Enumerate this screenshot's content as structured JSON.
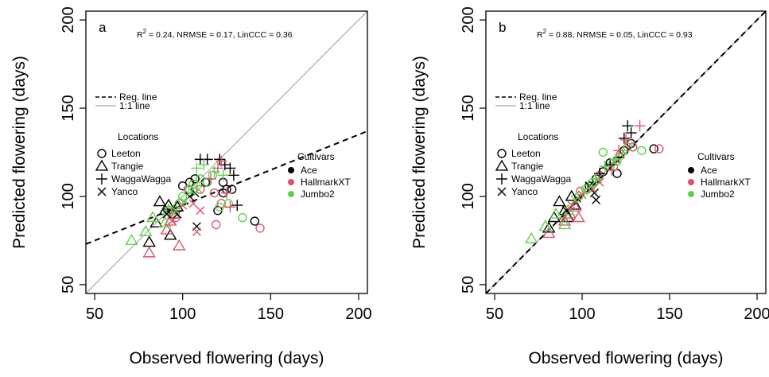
{
  "figure": {
    "xlabel": "Observed flowering (days)",
    "ylabel": "Predicted flowering (days)"
  },
  "chart_data": [
    {
      "type": "scatter",
      "panel": "a",
      "stats": [
        "R",
        "2",
        " = 0.24,  NRMSE = 0.17,  LinCCC = 0.36"
      ],
      "xlabel": "Observed flowering (days)",
      "ylabel": "Predicted flowering (days)",
      "xlim": [
        45,
        205
      ],
      "ylim": [
        45,
        205
      ],
      "xticks": [
        "50",
        "100",
        "150",
        "200"
      ],
      "yticks": [
        "50",
        "100",
        "150",
        "200"
      ],
      "grid": false,
      "lines_legend": [
        {
          "label": "Reg. line",
          "style": "dashed",
          "color": "#000000"
        },
        {
          "label": "1:1 line",
          "style": "solid",
          "color": "#aaaaaa"
        }
      ],
      "regression": {
        "slope": 0.4,
        "intercept": 55
      },
      "locations_title": "Locations",
      "locations": [
        {
          "name": "Leeton",
          "marker": "circle"
        },
        {
          "name": "Trangie",
          "marker": "triangle"
        },
        {
          "name": "WaggaWagga",
          "marker": "plus"
        },
        {
          "name": "Yanco",
          "marker": "cross"
        }
      ],
      "cultivars_title": "Cultivars",
      "cultivars": [
        {
          "name": "Ace",
          "color": "#000000"
        },
        {
          "name": "HallmarkXT",
          "color": "#df536b"
        },
        {
          "name": "Jumbo2",
          "color": "#61d04f"
        }
      ],
      "points": [
        {
          "x": 100,
          "y": 106,
          "loc": "circle",
          "cv": "Ace"
        },
        {
          "x": 104,
          "y": 108,
          "loc": "circle",
          "cv": "Ace"
        },
        {
          "x": 107,
          "y": 110,
          "loc": "circle",
          "cv": "Ace"
        },
        {
          "x": 113,
          "y": 108,
          "loc": "circle",
          "cv": "Ace"
        },
        {
          "x": 120,
          "y": 92,
          "loc": "circle",
          "cv": "Ace"
        },
        {
          "x": 123,
          "y": 102,
          "loc": "circle",
          "cv": "Ace"
        },
        {
          "x": 125,
          "y": 104,
          "loc": "circle",
          "cv": "Ace"
        },
        {
          "x": 128,
          "y": 104,
          "loc": "circle",
          "cv": "Ace"
        },
        {
          "x": 141,
          "y": 86,
          "loc": "circle",
          "cv": "Ace"
        },
        {
          "x": 123,
          "y": 108,
          "loc": "circle",
          "cv": "Ace"
        },
        {
          "x": 103,
          "y": 104,
          "loc": "circle",
          "cv": "HallmarkXT"
        },
        {
          "x": 110,
          "y": 104,
          "loc": "circle",
          "cv": "HallmarkXT"
        },
        {
          "x": 118,
          "y": 102,
          "loc": "circle",
          "cv": "HallmarkXT"
        },
        {
          "x": 119,
          "y": 84,
          "loc": "circle",
          "cv": "HallmarkXT"
        },
        {
          "x": 122,
          "y": 96,
          "loc": "circle",
          "cv": "HallmarkXT"
        },
        {
          "x": 144,
          "y": 82,
          "loc": "circle",
          "cv": "HallmarkXT"
        },
        {
          "x": 96,
          "y": 88,
          "loc": "circle",
          "cv": "HallmarkXT"
        },
        {
          "x": 100,
          "y": 100,
          "loc": "circle",
          "cv": "Jumbo2"
        },
        {
          "x": 104,
          "y": 104,
          "loc": "circle",
          "cv": "Jumbo2"
        },
        {
          "x": 106,
          "y": 107,
          "loc": "circle",
          "cv": "Jumbo2"
        },
        {
          "x": 110,
          "y": 110,
          "loc": "circle",
          "cv": "Jumbo2"
        },
        {
          "x": 114,
          "y": 108,
          "loc": "circle",
          "cv": "Jumbo2"
        },
        {
          "x": 117,
          "y": 112,
          "loc": "circle",
          "cv": "Jumbo2"
        },
        {
          "x": 121,
          "y": 94,
          "loc": "circle",
          "cv": "Jumbo2"
        },
        {
          "x": 126,
          "y": 96,
          "loc": "circle",
          "cv": "Jumbo2"
        },
        {
          "x": 134,
          "y": 88,
          "loc": "circle",
          "cv": "Jumbo2"
        },
        {
          "x": 93,
          "y": 92,
          "loc": "circle",
          "cv": "Jumbo2"
        },
        {
          "x": 98,
          "y": 96,
          "loc": "circle",
          "cv": "Jumbo2"
        },
        {
          "x": 81,
          "y": 74,
          "loc": "triangle",
          "cv": "Ace"
        },
        {
          "x": 85,
          "y": 85,
          "loc": "triangle",
          "cv": "Ace"
        },
        {
          "x": 87,
          "y": 97,
          "loc": "triangle",
          "cv": "Ace"
        },
        {
          "x": 90,
          "y": 92,
          "loc": "triangle",
          "cv": "Ace"
        },
        {
          "x": 92,
          "y": 95,
          "loc": "triangle",
          "cv": "Ace"
        },
        {
          "x": 93,
          "y": 78,
          "loc": "triangle",
          "cv": "Ace"
        },
        {
          "x": 95,
          "y": 90,
          "loc": "triangle",
          "cv": "Ace"
        },
        {
          "x": 97,
          "y": 94,
          "loc": "triangle",
          "cv": "Ace"
        },
        {
          "x": 81,
          "y": 68,
          "loc": "triangle",
          "cv": "HallmarkXT"
        },
        {
          "x": 91,
          "y": 81,
          "loc": "triangle",
          "cv": "HallmarkXT"
        },
        {
          "x": 93,
          "y": 86,
          "loc": "triangle",
          "cv": "HallmarkXT"
        },
        {
          "x": 95,
          "y": 90,
          "loc": "triangle",
          "cv": "HallmarkXT"
        },
        {
          "x": 98,
          "y": 72,
          "loc": "triangle",
          "cv": "HallmarkXT"
        },
        {
          "x": 71,
          "y": 75,
          "loc": "triangle",
          "cv": "Jumbo2"
        },
        {
          "x": 79,
          "y": 80,
          "loc": "triangle",
          "cv": "Jumbo2"
        },
        {
          "x": 83,
          "y": 88,
          "loc": "triangle",
          "cv": "Jumbo2"
        },
        {
          "x": 90,
          "y": 85,
          "loc": "triangle",
          "cv": "Jumbo2"
        },
        {
          "x": 92,
          "y": 92,
          "loc": "triangle",
          "cv": "Jumbo2"
        },
        {
          "x": 110,
          "y": 121,
          "loc": "plus",
          "cv": "Ace"
        },
        {
          "x": 114,
          "y": 121,
          "loc": "plus",
          "cv": "Ace"
        },
        {
          "x": 121,
          "y": 121,
          "loc": "plus",
          "cv": "Ace"
        },
        {
          "x": 124,
          "y": 118,
          "loc": "plus",
          "cv": "Ace"
        },
        {
          "x": 127,
          "y": 116,
          "loc": "plus",
          "cv": "Ace"
        },
        {
          "x": 129,
          "y": 112,
          "loc": "plus",
          "cv": "Ace"
        },
        {
          "x": 131,
          "y": 95,
          "loc": "plus",
          "cv": "Ace"
        },
        {
          "x": 116,
          "y": 110,
          "loc": "plus",
          "cv": "HallmarkXT"
        },
        {
          "x": 120,
          "y": 116,
          "loc": "plus",
          "cv": "HallmarkXT"
        },
        {
          "x": 122,
          "y": 120,
          "loc": "plus",
          "cv": "HallmarkXT"
        },
        {
          "x": 125,
          "y": 102,
          "loc": "plus",
          "cv": "HallmarkXT"
        },
        {
          "x": 127,
          "y": 94,
          "loc": "plus",
          "cv": "HallmarkXT"
        },
        {
          "x": 108,
          "y": 116,
          "loc": "plus",
          "cv": "Jumbo2"
        },
        {
          "x": 112,
          "y": 118,
          "loc": "plus",
          "cv": "Jumbo2"
        },
        {
          "x": 118,
          "y": 114,
          "loc": "plus",
          "cv": "Jumbo2"
        },
        {
          "x": 123,
          "y": 112,
          "loc": "plus",
          "cv": "Jumbo2"
        },
        {
          "x": 91,
          "y": 90,
          "loc": "cross",
          "cv": "Ace"
        },
        {
          "x": 97,
          "y": 90,
          "loc": "cross",
          "cv": "Ace"
        },
        {
          "x": 104,
          "y": 100,
          "loc": "cross",
          "cv": "Ace"
        },
        {
          "x": 107,
          "y": 102,
          "loc": "cross",
          "cv": "Ace"
        },
        {
          "x": 108,
          "y": 83,
          "loc": "cross",
          "cv": "Ace"
        },
        {
          "x": 94,
          "y": 86,
          "loc": "cross",
          "cv": "HallmarkXT"
        },
        {
          "x": 100,
          "y": 95,
          "loc": "cross",
          "cv": "HallmarkXT"
        },
        {
          "x": 106,
          "y": 96,
          "loc": "cross",
          "cv": "HallmarkXT"
        },
        {
          "x": 108,
          "y": 80,
          "loc": "cross",
          "cv": "HallmarkXT"
        },
        {
          "x": 110,
          "y": 92,
          "loc": "cross",
          "cv": "HallmarkXT"
        },
        {
          "x": 96,
          "y": 92,
          "loc": "cross",
          "cv": "Jumbo2"
        },
        {
          "x": 101,
          "y": 97,
          "loc": "cross",
          "cv": "Jumbo2"
        },
        {
          "x": 105,
          "y": 103,
          "loc": "cross",
          "cv": "Jumbo2"
        },
        {
          "x": 109,
          "y": 104,
          "loc": "cross",
          "cv": "Jumbo2"
        }
      ]
    },
    {
      "type": "scatter",
      "panel": "b",
      "stats": [
        "R",
        "2",
        " = 0.88,  NRMSE = 0.05,  LinCCC = 0.93"
      ],
      "xlabel": "Observed flowering (days)",
      "ylabel": "Predicted flowering (days)",
      "xlim": [
        45,
        205
      ],
      "ylim": [
        45,
        205
      ],
      "xticks": [
        "50",
        "100",
        "150",
        "200"
      ],
      "yticks": [
        "50",
        "100",
        "150",
        "200"
      ],
      "grid": false,
      "lines_legend": [
        {
          "label": "Reg. line",
          "style": "dashed",
          "color": "#000000"
        },
        {
          "label": "1:1 line",
          "style": "solid",
          "color": "#aaaaaa"
        }
      ],
      "regression": {
        "slope": 1.0,
        "intercept": 0
      },
      "locations_title": "Locations",
      "locations": [
        {
          "name": "Leeton",
          "marker": "circle"
        },
        {
          "name": "Trangie",
          "marker": "triangle"
        },
        {
          "name": "WaggaWagga",
          "marker": "plus"
        },
        {
          "name": "Yanco",
          "marker": "cross"
        }
      ],
      "cultivars_title": "Cultivars",
      "cultivars": [
        {
          "name": "Ace",
          "color": "#000000"
        },
        {
          "name": "HallmarkXT",
          "color": "#df536b"
        },
        {
          "name": "Jumbo2",
          "color": "#61d04f"
        }
      ],
      "points": [
        {
          "x": 104,
          "y": 106,
          "loc": "circle",
          "cv": "Ace"
        },
        {
          "x": 108,
          "y": 110,
          "loc": "circle",
          "cv": "Ace"
        },
        {
          "x": 112,
          "y": 114,
          "loc": "circle",
          "cv": "Ace"
        },
        {
          "x": 116,
          "y": 119,
          "loc": "circle",
          "cv": "Ace"
        },
        {
          "x": 120,
          "y": 113,
          "loc": "circle",
          "cv": "Ace"
        },
        {
          "x": 124,
          "y": 126,
          "loc": "circle",
          "cv": "Ace"
        },
        {
          "x": 128,
          "y": 130,
          "loc": "circle",
          "cv": "Ace"
        },
        {
          "x": 141,
          "y": 127,
          "loc": "circle",
          "cv": "Ace"
        },
        {
          "x": 99,
          "y": 103,
          "loc": "circle",
          "cv": "HallmarkXT"
        },
        {
          "x": 110,
          "y": 112,
          "loc": "circle",
          "cv": "HallmarkXT"
        },
        {
          "x": 118,
          "y": 117,
          "loc": "circle",
          "cv": "HallmarkXT"
        },
        {
          "x": 122,
          "y": 124,
          "loc": "circle",
          "cv": "HallmarkXT"
        },
        {
          "x": 129,
          "y": 128,
          "loc": "circle",
          "cv": "HallmarkXT"
        },
        {
          "x": 144,
          "y": 127,
          "loc": "circle",
          "cv": "HallmarkXT"
        },
        {
          "x": 102,
          "y": 104,
          "loc": "circle",
          "cv": "Jumbo2"
        },
        {
          "x": 106,
          "y": 108,
          "loc": "circle",
          "cv": "Jumbo2"
        },
        {
          "x": 112,
          "y": 125,
          "loc": "circle",
          "cv": "Jumbo2"
        },
        {
          "x": 116,
          "y": 117,
          "loc": "circle",
          "cv": "Jumbo2"
        },
        {
          "x": 120,
          "y": 120,
          "loc": "circle",
          "cv": "Jumbo2"
        },
        {
          "x": 126,
          "y": 128,
          "loc": "circle",
          "cv": "Jumbo2"
        },
        {
          "x": 134,
          "y": 126,
          "loc": "circle",
          "cv": "Jumbo2"
        },
        {
          "x": 98,
          "y": 100,
          "loc": "circle",
          "cv": "Jumbo2"
        },
        {
          "x": 81,
          "y": 82,
          "loc": "triangle",
          "cv": "Ace"
        },
        {
          "x": 84,
          "y": 88,
          "loc": "triangle",
          "cv": "Ace"
        },
        {
          "x": 87,
          "y": 97,
          "loc": "triangle",
          "cv": "Ace"
        },
        {
          "x": 90,
          "y": 92,
          "loc": "triangle",
          "cv": "Ace"
        },
        {
          "x": 92,
          "y": 88,
          "loc": "triangle",
          "cv": "Ace"
        },
        {
          "x": 94,
          "y": 100,
          "loc": "triangle",
          "cv": "Ace"
        },
        {
          "x": 96,
          "y": 95,
          "loc": "triangle",
          "cv": "Ace"
        },
        {
          "x": 81,
          "y": 79,
          "loc": "triangle",
          "cv": "HallmarkXT"
        },
        {
          "x": 90,
          "y": 86,
          "loc": "triangle",
          "cv": "HallmarkXT"
        },
        {
          "x": 93,
          "y": 90,
          "loc": "triangle",
          "cv": "HallmarkXT"
        },
        {
          "x": 96,
          "y": 94,
          "loc": "triangle",
          "cv": "HallmarkXT"
        },
        {
          "x": 98,
          "y": 88,
          "loc": "triangle",
          "cv": "HallmarkXT"
        },
        {
          "x": 71,
          "y": 76,
          "loc": "triangle",
          "cv": "Jumbo2"
        },
        {
          "x": 79,
          "y": 83,
          "loc": "triangle",
          "cv": "Jumbo2"
        },
        {
          "x": 85,
          "y": 90,
          "loc": "triangle",
          "cv": "Jumbo2"
        },
        {
          "x": 90,
          "y": 84,
          "loc": "triangle",
          "cv": "Jumbo2"
        },
        {
          "x": 92,
          "y": 92,
          "loc": "triangle",
          "cv": "Jumbo2"
        },
        {
          "x": 110,
          "y": 113,
          "loc": "plus",
          "cv": "Ace"
        },
        {
          "x": 116,
          "y": 118,
          "loc": "plus",
          "cv": "Ace"
        },
        {
          "x": 121,
          "y": 122,
          "loc": "plus",
          "cv": "Ace"
        },
        {
          "x": 124,
          "y": 133,
          "loc": "plus",
          "cv": "Ace"
        },
        {
          "x": 126,
          "y": 140,
          "loc": "plus",
          "cv": "Ace"
        },
        {
          "x": 128,
          "y": 136,
          "loc": "plus",
          "cv": "Ace"
        },
        {
          "x": 117,
          "y": 115,
          "loc": "plus",
          "cv": "HallmarkXT"
        },
        {
          "x": 121,
          "y": 126,
          "loc": "plus",
          "cv": "HallmarkXT"
        },
        {
          "x": 125,
          "y": 132,
          "loc": "plus",
          "cv": "HallmarkXT"
        },
        {
          "x": 133,
          "y": 140,
          "loc": "plus",
          "cv": "HallmarkXT"
        },
        {
          "x": 108,
          "y": 110,
          "loc": "plus",
          "cv": "Jumbo2"
        },
        {
          "x": 113,
          "y": 117,
          "loc": "plus",
          "cv": "Jumbo2"
        },
        {
          "x": 119,
          "y": 121,
          "loc": "plus",
          "cv": "Jumbo2"
        },
        {
          "x": 123,
          "y": 124,
          "loc": "plus",
          "cv": "Jumbo2"
        },
        {
          "x": 91,
          "y": 92,
          "loc": "cross",
          "cv": "Ace"
        },
        {
          "x": 97,
          "y": 99,
          "loc": "cross",
          "cv": "Ace"
        },
        {
          "x": 104,
          "y": 106,
          "loc": "cross",
          "cv": "Ace"
        },
        {
          "x": 107,
          "y": 102,
          "loc": "cross",
          "cv": "Ace"
        },
        {
          "x": 108,
          "y": 98,
          "loc": "cross",
          "cv": "Ace"
        },
        {
          "x": 94,
          "y": 95,
          "loc": "cross",
          "cv": "HallmarkXT"
        },
        {
          "x": 100,
          "y": 101,
          "loc": "cross",
          "cv": "HallmarkXT"
        },
        {
          "x": 106,
          "y": 104,
          "loc": "cross",
          "cv": "HallmarkXT"
        },
        {
          "x": 110,
          "y": 108,
          "loc": "cross",
          "cv": "HallmarkXT"
        },
        {
          "x": 96,
          "y": 98,
          "loc": "cross",
          "cv": "Jumbo2"
        },
        {
          "x": 101,
          "y": 103,
          "loc": "cross",
          "cv": "Jumbo2"
        },
        {
          "x": 105,
          "y": 106,
          "loc": "cross",
          "cv": "Jumbo2"
        },
        {
          "x": 109,
          "y": 110,
          "loc": "cross",
          "cv": "Jumbo2"
        }
      ]
    }
  ]
}
